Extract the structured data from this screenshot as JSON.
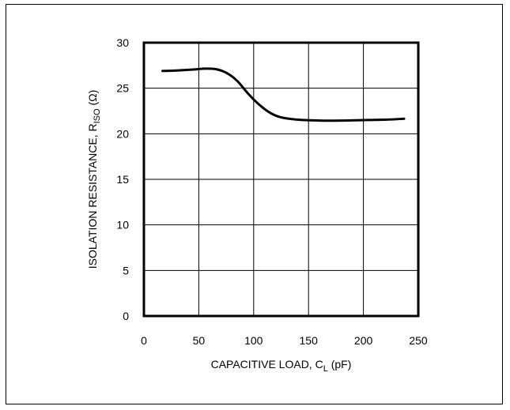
{
  "chart_data": {
    "type": "line",
    "title": "",
    "xlabel": "CAPACITIVE LOAD, C",
    "xlabel_sub": "L",
    "xlabel_suffix": " (pF)",
    "ylabel": "ISOLATION RESISTANCE, R",
    "ylabel_sub": "ISO",
    "ylabel_suffix": " (Ω)",
    "xlim": [
      0,
      250
    ],
    "ylim": [
      0,
      30
    ],
    "xticks": [
      0,
      50,
      100,
      150,
      200,
      250
    ],
    "yticks": [
      0,
      5,
      10,
      15,
      20,
      25,
      30
    ],
    "grid": true,
    "series": [
      {
        "color": "#000000",
        "x": [
          17,
          30,
          45,
          55,
          65,
          75,
          85,
          95,
          105,
          115,
          125,
          140,
          160,
          180,
          200,
          220,
          237
        ],
        "y": [
          26.9,
          26.95,
          27.05,
          27.15,
          27.1,
          26.7,
          25.8,
          24.4,
          23.2,
          22.3,
          21.8,
          21.55,
          21.45,
          21.45,
          21.5,
          21.55,
          21.65
        ]
      }
    ]
  }
}
